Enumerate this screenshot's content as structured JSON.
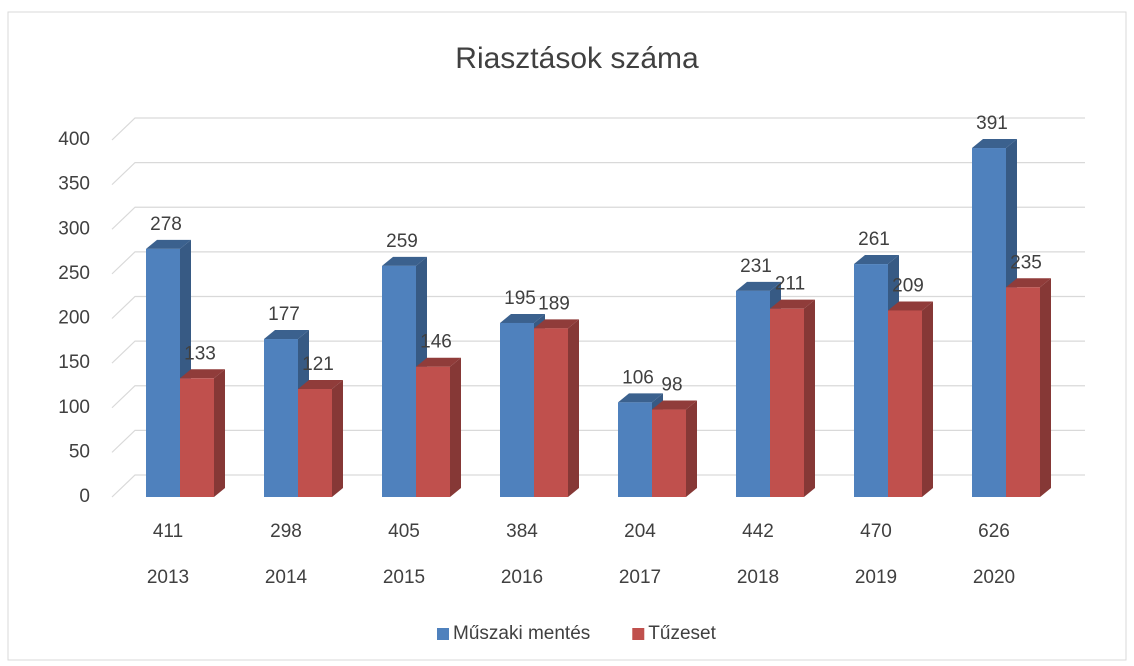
{
  "chart_data": {
    "type": "bar3d",
    "title": "Riasztások száma",
    "categories": [
      "2013",
      "2014",
      "2015",
      "2016",
      "2017",
      "2018",
      "2019",
      "2020"
    ],
    "category_totals": [
      411,
      298,
      405,
      384,
      204,
      442,
      470,
      626
    ],
    "series": [
      {
        "name": "Műszaki mentés",
        "color": "#4f81bd",
        "values": [
          278,
          177,
          259,
          195,
          106,
          231,
          261,
          391
        ]
      },
      {
        "name": "Tűzeset",
        "color": "#c0504d",
        "values": [
          133,
          121,
          146,
          189,
          98,
          211,
          209,
          235
        ]
      }
    ],
    "ylim": [
      0,
      400
    ],
    "yticks": [
      0,
      50,
      100,
      150,
      200,
      250,
      300,
      350,
      400
    ],
    "grid": true,
    "legend": "bottom"
  }
}
